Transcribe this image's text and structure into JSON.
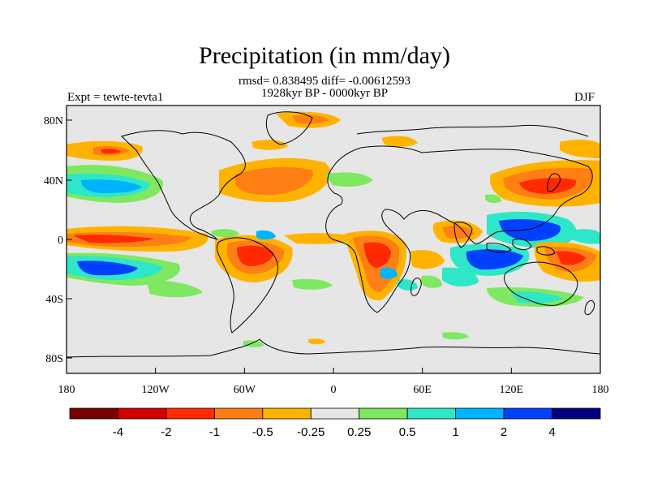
{
  "map": {
    "title": "Precipitation (in mm/day)",
    "stats_line": "rmsd= 0.838495 diff= -0.00612593",
    "period_line": "1928kyr BP - 0000kyr BP",
    "experiment": "Expt = tewte-tevta1",
    "season": "DJF",
    "lat_ticks": [
      "80N",
      "40N",
      "0",
      "40S",
      "80S"
    ],
    "lon_ticks": [
      "180",
      "120W",
      "60W",
      "0",
      "60E",
      "120E",
      "180"
    ],
    "colors": {
      "background": "#e6e6e6",
      "coast": "#000000"
    }
  },
  "colorbar": {
    "labels": [
      "-4",
      "-2",
      "-1",
      "-0.5",
      "-0.25",
      "0.25",
      "0.5",
      "1",
      "2",
      "4"
    ],
    "colors": [
      "#7a0000",
      "#d40000",
      "#ff2a00",
      "#ff7f14",
      "#ffb300",
      "#e6e6e6",
      "#7ee860",
      "#2ee6c8",
      "#00b4ff",
      "#0040ff",
      "#000080"
    ]
  }
}
